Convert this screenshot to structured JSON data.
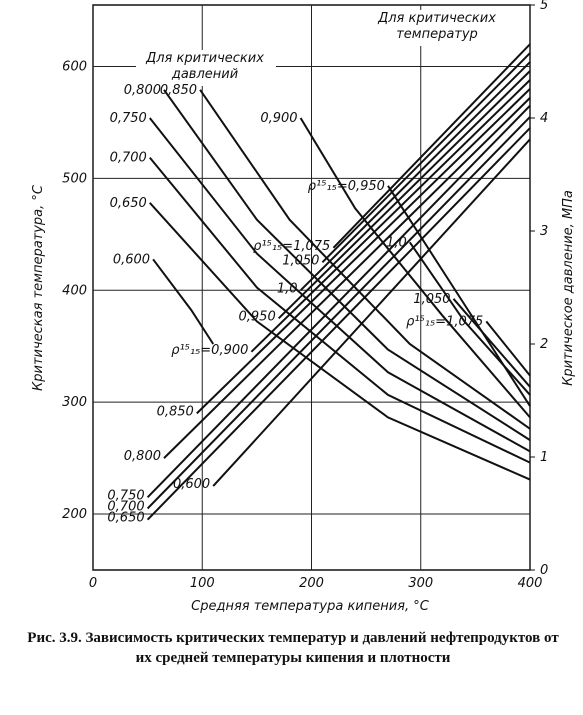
{
  "chart_data": {
    "type": "line",
    "title": "Рис. 3.9. Зависимость критических температур и давлений нефтепродуктов от их средней температуры кипения и плотности",
    "x_label": "Средняя температура кипения, °C",
    "y_label": "Критическая температура, °C",
    "y2_label": "Критическое давление, МПа",
    "annotations": [
      [
        "Для критических",
        "давлений"
      ],
      [
        "Для критических",
        "температур"
      ]
    ],
    "xlim": [
      0,
      400
    ],
    "xticks": [
      0,
      100,
      200,
      300,
      400
    ],
    "ylim": [
      150,
      655
    ],
    "yticks": [
      200,
      300,
      400,
      500,
      600
    ],
    "y2lim": [
      0,
      5
    ],
    "y2ticks": [
      0,
      1,
      2,
      3,
      4,
      5
    ],
    "grid": true,
    "color": "#111111",
    "series": [
      {
        "name": "0,600",
        "axis": "y",
        "x": [
          110,
          400
        ],
        "values": [
          225,
          535
        ]
      },
      {
        "name": "0,650",
        "axis": "y",
        "x": [
          50,
          400
        ],
        "values": [
          195,
          545
        ]
      },
      {
        "name": "0,700",
        "axis": "y",
        "x": [
          50,
          400
        ],
        "values": [
          205,
          555
        ]
      },
      {
        "name": "0,750",
        "axis": "y",
        "x": [
          50,
          400
        ],
        "values": [
          215,
          565
        ]
      },
      {
        "name": "0,800",
        "axis": "y",
        "x": [
          65,
          400
        ],
        "values": [
          250,
          572
        ]
      },
      {
        "name": "0,850",
        "axis": "y",
        "x": [
          95,
          400
        ],
        "values": [
          290,
          580
        ]
      },
      {
        "name": "ρ¹⁵₁₅=0,900",
        "axis": "y",
        "x": [
          145,
          400
        ],
        "values": [
          345,
          588
        ]
      },
      {
        "name": "0,950",
        "axis": "y",
        "x": [
          170,
          400
        ],
        "values": [
          375,
          596
        ]
      },
      {
        "name": "1,0",
        "axis": "y",
        "x": [
          190,
          400
        ],
        "values": [
          400,
          604
        ]
      },
      {
        "name": "1,050",
        "axis": "y",
        "x": [
          210,
          400
        ],
        "values": [
          425,
          612
        ]
      },
      {
        "name": "ρ¹⁵₁₅=1,075",
        "axis": "y",
        "x": [
          220,
          400
        ],
        "values": [
          438,
          620
        ]
      },
      {
        "name": "0,600",
        "axis": "y2",
        "x": [
          55,
          90,
          110
        ],
        "values": [
          2.75,
          2.3,
          2.0
        ]
      },
      {
        "name": "0,650",
        "axis": "y2",
        "x": [
          52,
          150,
          270,
          400
        ],
        "values": [
          3.25,
          2.2,
          1.35,
          0.8
        ]
      },
      {
        "name": "0,700",
        "axis": "y2",
        "x": [
          52,
          150,
          270,
          400
        ],
        "values": [
          3.65,
          2.5,
          1.55,
          0.95
        ]
      },
      {
        "name": "0,750",
        "axis": "y2",
        "x": [
          52,
          150,
          270,
          400
        ],
        "values": [
          4.0,
          2.8,
          1.75,
          1.05
        ]
      },
      {
        "name": "0,800",
        "axis": "y2",
        "x": [
          65,
          150,
          270,
          400
        ],
        "values": [
          4.25,
          3.1,
          1.95,
          1.15
        ]
      },
      {
        "name": "0,850",
        "axis": "y2",
        "x": [
          98,
          180,
          290,
          400
        ],
        "values": [
          4.25,
          3.1,
          2.0,
          1.25
        ]
      },
      {
        "name": "0,900",
        "axis": "y2",
        "x": [
          190,
          240,
          320,
          400
        ],
        "values": [
          4.0,
          3.2,
          2.25,
          1.35
        ]
      },
      {
        "name": "ρ¹⁵₁₅=0,950",
        "axis": "y2",
        "x": [
          270,
          330,
          400
        ],
        "values": [
          3.4,
          2.5,
          1.45
        ]
      },
      {
        "name": "1,0",
        "axis": "y2",
        "x": [
          290,
          340,
          400
        ],
        "values": [
          2.9,
          2.2,
          1.55
        ]
      },
      {
        "name": "1,050",
        "axis": "y2",
        "x": [
          330,
          400
        ],
        "values": [
          2.4,
          1.62
        ]
      },
      {
        "name": "ρ¹⁵₁₅=1,075",
        "axis": "y2",
        "x": [
          360,
          400
        ],
        "values": [
          2.2,
          1.72
        ]
      }
    ]
  }
}
